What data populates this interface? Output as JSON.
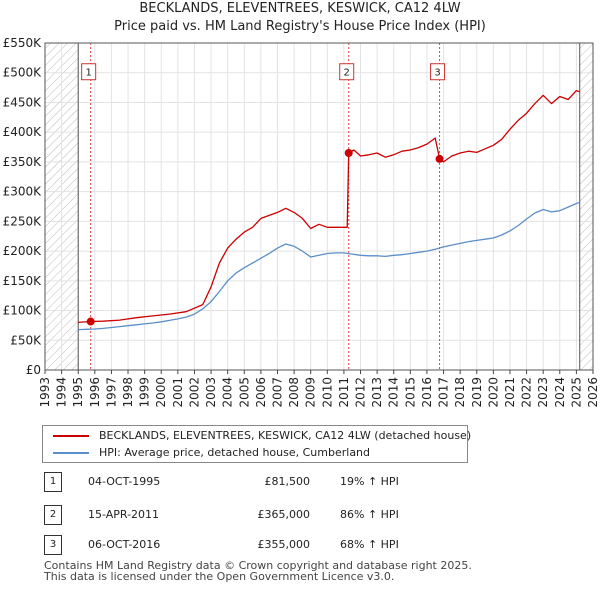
{
  "title": "BECKLANDS, ELEVENTREES, KESWICK, CA12 4LW",
  "subtitle": "Price paid vs. HM Land Registry's House Price Index (HPI)",
  "chart_data": {
    "type": "line",
    "ylim": [
      0,
      550000
    ],
    "xlim": [
      1993,
      2026
    ],
    "y_ticks": [
      0,
      50000,
      100000,
      150000,
      200000,
      250000,
      300000,
      350000,
      400000,
      450000,
      500000,
      550000
    ],
    "y_tick_labels": [
      "£0",
      "£50K",
      "£100K",
      "£150K",
      "£200K",
      "£250K",
      "£300K",
      "£350K",
      "£400K",
      "£450K",
      "£500K",
      "£550K"
    ],
    "x_tick_labels": [
      "1993",
      "1994",
      "1995",
      "1996",
      "1997",
      "1998",
      "1999",
      "2000",
      "2001",
      "2002",
      "2003",
      "2004",
      "2005",
      "2006",
      "2007",
      "2008",
      "2009",
      "2010",
      "2011",
      "2012",
      "2013",
      "2014",
      "2015",
      "2016",
      "2017",
      "2018",
      "2019",
      "2020",
      "2021",
      "2022",
      "2023",
      "2024",
      "2025",
      "2026"
    ],
    "data_range": [
      1995.0,
      2025.2
    ],
    "series": [
      {
        "name": "BECKLANDS, ELEVENTREES, KESWICK, CA12 4LW (detached house)",
        "color": "#cc0000",
        "x": [
          1995.0,
          1995.75,
          1996.5,
          1997.5,
          1998.5,
          1999.5,
          2000.5,
          2001.5,
          2002.5,
          2003.0,
          2003.5,
          2004.0,
          2004.5,
          2005.0,
          2005.5,
          2006.0,
          2006.5,
          2007.0,
          2007.5,
          2008.0,
          2008.5,
          2009.0,
          2009.5,
          2010.0,
          2010.5,
          2011.2,
          2011.29,
          2011.6,
          2012.0,
          2012.5,
          2013.0,
          2013.5,
          2014.0,
          2014.5,
          2015.0,
          2015.5,
          2016.0,
          2016.5,
          2016.76,
          2017.0,
          2017.5,
          2018.0,
          2018.5,
          2019.0,
          2019.5,
          2020.0,
          2020.5,
          2021.0,
          2021.5,
          2022.0,
          2022.5,
          2023.0,
          2023.5,
          2024.0,
          2024.5,
          2025.0,
          2025.2
        ],
        "y": [
          80000,
          81500,
          82000,
          84000,
          88000,
          91000,
          94000,
          98000,
          110000,
          140000,
          180000,
          205000,
          220000,
          232000,
          240000,
          255000,
          260000,
          265000,
          272000,
          265000,
          255000,
          238000,
          245000,
          240000,
          240000,
          240000,
          365000,
          370000,
          360000,
          362000,
          365000,
          358000,
          362000,
          368000,
          370000,
          374000,
          380000,
          390000,
          355000,
          350000,
          360000,
          365000,
          368000,
          366000,
          372000,
          378000,
          388000,
          405000,
          420000,
          432000,
          448000,
          462000,
          448000,
          460000,
          455000,
          470000,
          468000
        ]
      },
      {
        "name": "HPI: Average price, detached house, Cumberland",
        "color": "#5b8fc9",
        "x": [
          1995.0,
          1995.5,
          1996.0,
          1996.5,
          1997.0,
          1997.5,
          1998.0,
          1998.5,
          1999.0,
          1999.5,
          2000.0,
          2000.5,
          2001.0,
          2001.5,
          2002.0,
          2002.5,
          2003.0,
          2003.5,
          2004.0,
          2004.5,
          2005.0,
          2005.5,
          2006.0,
          2006.5,
          2007.0,
          2007.5,
          2008.0,
          2008.5,
          2009.0,
          2009.5,
          2010.0,
          2010.5,
          2011.0,
          2011.5,
          2012.0,
          2012.5,
          2013.0,
          2013.5,
          2014.0,
          2014.5,
          2015.0,
          2015.5,
          2016.0,
          2016.5,
          2017.0,
          2017.5,
          2018.0,
          2018.5,
          2019.0,
          2019.5,
          2020.0,
          2020.5,
          2021.0,
          2021.5,
          2022.0,
          2022.5,
          2023.0,
          2023.5,
          2024.0,
          2024.5,
          2025.0,
          2025.2
        ],
        "y": [
          68000,
          68500,
          69000,
          70000,
          71500,
          73000,
          74500,
          76000,
          77500,
          79000,
          81000,
          83500,
          86000,
          89000,
          94000,
          103000,
          115000,
          132000,
          150000,
          163000,
          172000,
          180000,
          188000,
          196000,
          205000,
          212000,
          208000,
          200000,
          190000,
          193000,
          196000,
          197000,
          197000,
          195000,
          193000,
          192000,
          192000,
          191000,
          193000,
          194000,
          196000,
          198000,
          200000,
          203000,
          207000,
          210000,
          213000,
          216000,
          218000,
          220000,
          222000,
          227000,
          234000,
          243000,
          254000,
          264000,
          270000,
          266000,
          268000,
          274000,
          280000,
          282000
        ]
      }
    ],
    "transactions": [
      {
        "label": "1",
        "x": 1995.75,
        "y": 81500
      },
      {
        "label": "2",
        "x": 2011.29,
        "y": 365000
      },
      {
        "label": "3",
        "x": 2016.76,
        "y": 355000
      }
    ],
    "marker_label_value": 500000,
    "hatch_regions": [
      [
        1993,
        1995.0
      ],
      [
        2025.2,
        2026
      ]
    ]
  },
  "legend": {
    "property": "BECKLANDS, ELEVENTREES, KESWICK, CA12 4LW (detached house)",
    "hpi": "HPI: Average price, detached house, Cumberland"
  },
  "transactions_table": [
    {
      "num": "1",
      "date": "04-OCT-1995",
      "price": "£81,500",
      "hpi": "19% ↑ HPI"
    },
    {
      "num": "2",
      "date": "15-APR-2011",
      "price": "£365,000",
      "hpi": "86% ↑ HPI"
    },
    {
      "num": "3",
      "date": "06-OCT-2016",
      "price": "£355,000",
      "hpi": "68% ↑ HPI"
    }
  ],
  "footer": {
    "line1": "Contains HM Land Registry data © Crown copyright and database right 2025.",
    "line2": "This data is licensed under the Open Government Licence v3.0."
  }
}
